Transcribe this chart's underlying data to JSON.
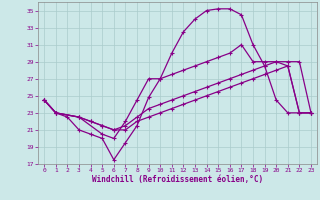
{
  "xlabel": "Windchill (Refroidissement éolien,°C)",
  "bg_color": "#cce8e8",
  "line_color": "#880088",
  "grid_color": "#aacccc",
  "xlim": [
    -0.5,
    23.5
  ],
  "ylim": [
    17,
    36
  ],
  "yticks": [
    17,
    19,
    21,
    23,
    25,
    27,
    29,
    31,
    33,
    35
  ],
  "xticks": [
    0,
    1,
    2,
    3,
    4,
    5,
    6,
    7,
    8,
    9,
    10,
    11,
    12,
    13,
    14,
    15,
    16,
    17,
    18,
    19,
    20,
    21,
    22,
    23
  ],
  "line1_x": [
    0,
    1,
    2,
    3,
    4,
    5,
    6,
    7,
    8,
    9,
    10,
    11,
    12,
    13,
    14,
    15,
    16,
    17,
    18,
    19,
    20,
    21,
    22,
    23
  ],
  "line1_y": [
    24.5,
    23.0,
    22.5,
    21.0,
    20.5,
    20.0,
    17.5,
    19.5,
    21.5,
    24.8,
    27.0,
    30.0,
    32.5,
    34.0,
    35.0,
    35.2,
    35.2,
    34.5,
    31.0,
    28.5,
    24.5,
    23.0,
    23.0,
    23.0
  ],
  "line2_x": [
    0,
    1,
    3,
    5,
    6,
    7,
    8,
    9,
    10,
    11,
    12,
    13,
    14,
    15,
    16,
    17,
    18,
    19,
    20,
    21,
    22,
    23
  ],
  "line2_y": [
    24.5,
    23.0,
    22.5,
    20.5,
    20.0,
    22.0,
    24.5,
    27.0,
    27.0,
    27.5,
    28.0,
    28.5,
    29.0,
    29.5,
    30.0,
    31.0,
    29.0,
    29.0,
    29.0,
    28.5,
    23.0,
    23.0
  ],
  "line3_x": [
    0,
    1,
    3,
    4,
    5,
    6,
    7,
    8,
    9,
    10,
    11,
    12,
    13,
    14,
    15,
    16,
    17,
    18,
    19,
    20,
    21,
    22,
    23
  ],
  "line3_y": [
    24.5,
    23.0,
    22.5,
    22.0,
    21.5,
    21.0,
    21.5,
    22.5,
    23.5,
    24.0,
    24.5,
    25.0,
    25.5,
    26.0,
    26.5,
    27.0,
    27.5,
    28.0,
    28.5,
    29.0,
    29.0,
    29.0,
    23.0
  ],
  "line4_x": [
    0,
    1,
    3,
    4,
    5,
    6,
    7,
    8,
    9,
    10,
    11,
    12,
    13,
    14,
    15,
    16,
    17,
    18,
    19,
    20,
    21,
    22,
    23
  ],
  "line4_y": [
    24.5,
    23.0,
    22.5,
    22.0,
    21.5,
    21.0,
    21.0,
    22.0,
    22.5,
    23.0,
    23.5,
    24.0,
    24.5,
    25.0,
    25.5,
    26.0,
    26.5,
    27.0,
    27.5,
    28.0,
    28.5,
    23.0,
    23.0
  ]
}
